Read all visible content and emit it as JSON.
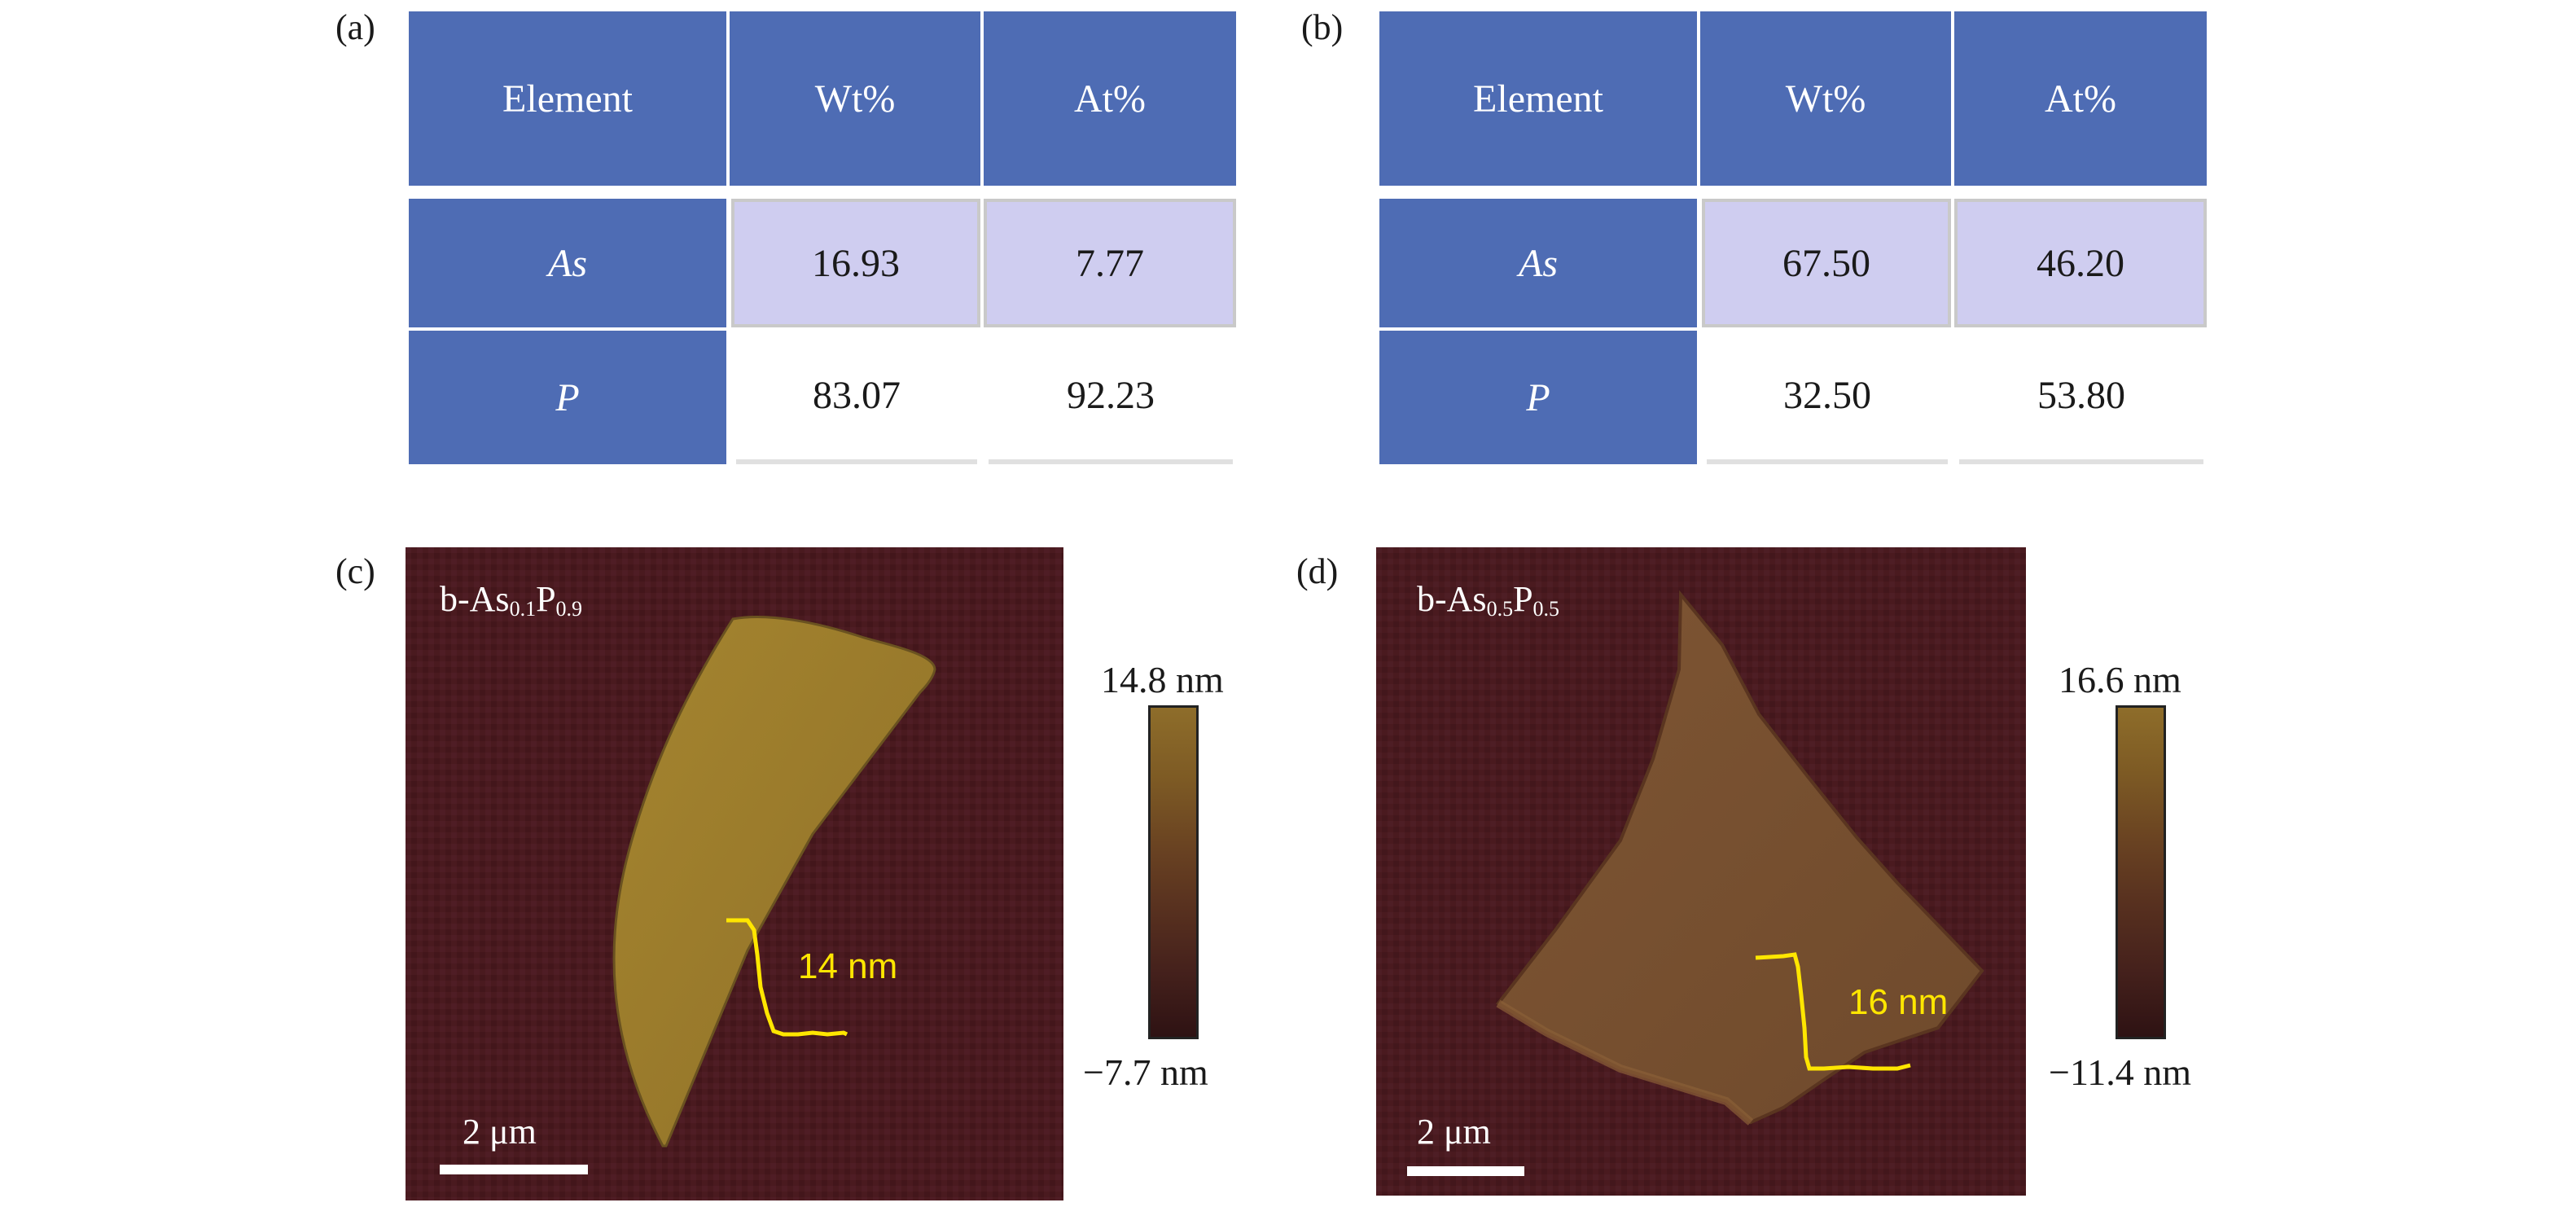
{
  "panels": {
    "a": {
      "label": "(a)",
      "table": {
        "headers": [
          "Element",
          "Wt%",
          "At%"
        ],
        "rows": [
          {
            "element": "As",
            "wt": "16.93",
            "at": "7.77"
          },
          {
            "element": "P",
            "wt": "83.07",
            "at": "92.23"
          }
        ]
      }
    },
    "b": {
      "label": "(b)",
      "table": {
        "headers": [
          "Element",
          "Wt%",
          "At%"
        ],
        "rows": [
          {
            "element": "As",
            "wt": "67.50",
            "at": "46.20"
          },
          {
            "element": "P",
            "wt": "32.50",
            "at": "53.80"
          }
        ]
      }
    },
    "c": {
      "label": "(c)",
      "title_prefix": "b-As",
      "title_sub1": "0.1",
      "title_mid": "P",
      "title_sub2": "0.9",
      "scale_bar": "2 μm",
      "step": "14 nm",
      "colorbar_max": "14.8 nm",
      "colorbar_min": "−7.7 nm"
    },
    "d": {
      "label": "(d)",
      "title_prefix": "b-As",
      "title_sub1": "0.5",
      "title_mid": "P",
      "title_sub2": "0.5",
      "scale_bar": "2 μm",
      "step": "16 nm",
      "colorbar_max": "16.6 nm",
      "colorbar_min": "−11.4 nm"
    }
  },
  "colors": {
    "table_header": "#4e6cb4",
    "table_highlight": "#cfcdf0",
    "afm_background": "#4a1a1f",
    "flake_c": "#9a7a2c",
    "flake_d": "#7a5030",
    "profile_line": "#ffe600"
  }
}
